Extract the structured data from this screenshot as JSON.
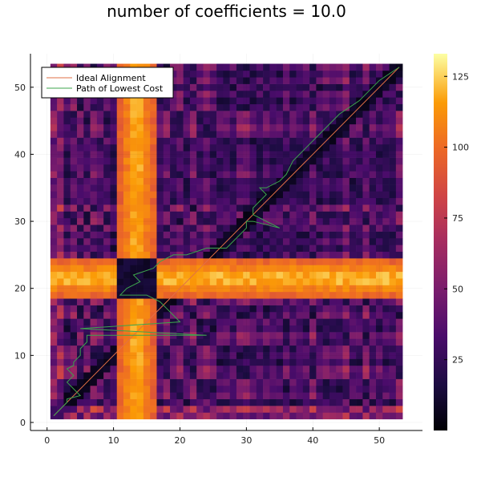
{
  "chart_data": {
    "type": "heatmap",
    "title": "number of coefficients = 10.0",
    "xlabel": "",
    "ylabel": "",
    "xlim": [
      -2.5,
      56.5
    ],
    "ylim": [
      -1.2,
      55.0
    ],
    "x_ticks": [
      0,
      10,
      20,
      30,
      40,
      50
    ],
    "y_ticks": [
      0,
      10,
      20,
      30,
      40,
      50
    ],
    "grid": true,
    "legend_position": "top-left",
    "heatmap": {
      "x_range": [
        1,
        53
      ],
      "y_range": [
        1,
        53
      ],
      "colorscale": "inferno",
      "value_range": [
        0,
        133
      ],
      "colorbar_ticks": [
        25,
        50,
        75,
        100,
        125
      ],
      "high_bands": [
        {
          "axis": "x",
          "from": 11,
          "to": 16,
          "peak": 128
        },
        {
          "axis": "y",
          "from": 19,
          "to": 24,
          "peak": 130
        }
      ],
      "background_level": 45
    },
    "series": [
      {
        "name": "Ideal Alignment",
        "color": "#e26f46",
        "x": [
          1,
          53
        ],
        "y": [
          1,
          53
        ]
      },
      {
        "name": "Path of Lowest Cost",
        "color": "#3da44d",
        "x": [
          1,
          2,
          3,
          3,
          5,
          4,
          3,
          4,
          3,
          4,
          4,
          5,
          5,
          6,
          6,
          24,
          5,
          20,
          19,
          18,
          17,
          15,
          12,
          11,
          12,
          14,
          13,
          16,
          17,
          19,
          21,
          24,
          27,
          28,
          29,
          30,
          30,
          31,
          35,
          31,
          31,
          32,
          33,
          32,
          33,
          35,
          36,
          37,
          39,
          41,
          44,
          47,
          50,
          53
        ],
        "y": [
          1,
          2,
          3,
          3.5,
          4,
          5,
          6,
          7,
          8,
          8.5,
          9,
          10,
          11,
          12,
          13,
          13,
          14,
          15,
          16,
          17,
          18,
          19,
          19,
          19,
          20,
          21,
          22,
          23,
          24,
          25,
          25,
          26,
          26,
          27,
          28,
          29,
          30,
          30,
          29,
          31,
          32,
          33,
          34,
          35,
          35,
          36,
          37,
          39,
          41,
          43,
          46,
          48,
          51,
          53
        ]
      }
    ]
  }
}
